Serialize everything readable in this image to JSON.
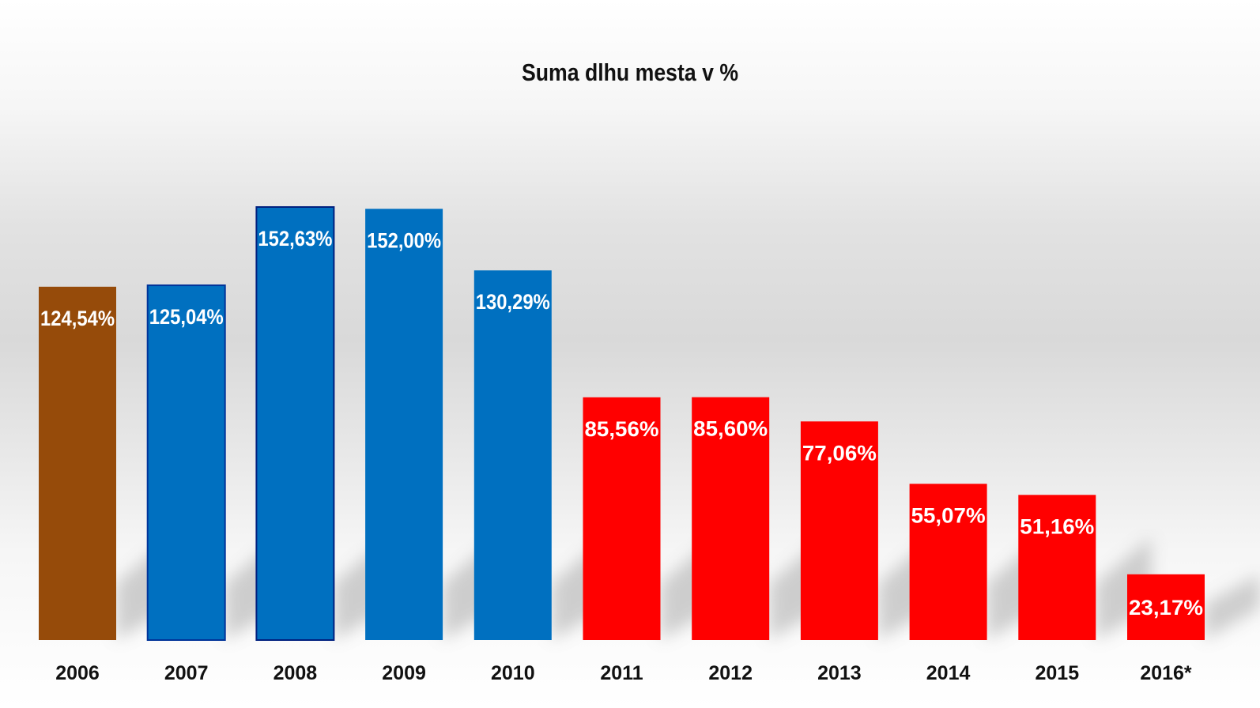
{
  "chart_data": {
    "type": "bar",
    "title": "Suma dlhu mesta v %",
    "xlabel": "",
    "ylabel": "",
    "ylim": [
      0,
      160
    ],
    "grid": false,
    "legend": "none",
    "categories": [
      "2006",
      "2007",
      "2008",
      "2009",
      "2010",
      "2011",
      "2012",
      "2013",
      "2014",
      "2015",
      "2016*"
    ],
    "values": [
      124.54,
      125.04,
      152.63,
      152.0,
      130.29,
      85.56,
      85.6,
      77.06,
      55.07,
      51.16,
      23.17
    ],
    "data_labels": [
      "124,54%",
      "125,04%",
      "152,63%",
      "152,00%",
      "130,29%",
      "85,56%",
      "85,60%",
      "77,06%",
      "55,07%",
      "51,16%",
      "23,17%"
    ],
    "bar_colors": [
      "#964B0A",
      "#0070C0",
      "#0070C0",
      "#0070C0",
      "#0070C0",
      "#FF0000",
      "#FF0000",
      "#FF0000",
      "#FF0000",
      "#FF0000",
      "#FF0000"
    ],
    "bar_outline": [
      "none",
      "#003399",
      "#00207F",
      "none",
      "none",
      "none",
      "none",
      "none",
      "none",
      "none",
      "none"
    ],
    "label_color": "#ffffff",
    "tick_label_color": "#111111"
  }
}
